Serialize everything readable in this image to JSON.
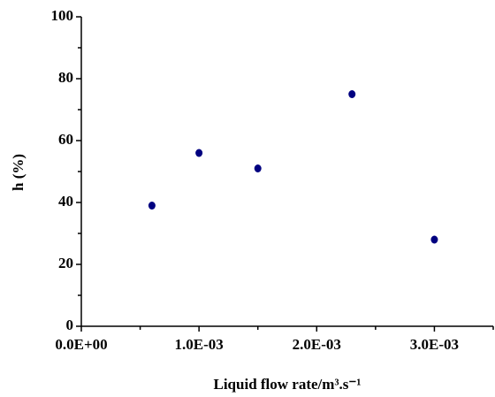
{
  "chart_data": {
    "type": "scatter",
    "xlabel": "Liquid flow rate/m³.s⁻¹",
    "ylabel": "h (%)",
    "x": [
      0.0006,
      0.001,
      0.0015,
      0.0023,
      0.003
    ],
    "values": [
      39,
      56,
      51,
      75,
      28
    ],
    "color": "#000080",
    "xlim": [
      0,
      0.0035
    ],
    "ylim": [
      0,
      100
    ],
    "xticks": [
      {
        "value": 0,
        "label": "0.0E+00"
      },
      {
        "value": 0.001,
        "label": "1.0E-03"
      },
      {
        "value": 0.002,
        "label": "2.0E-03"
      },
      {
        "value": 0.003,
        "label": "3.0E-03"
      }
    ],
    "xminorticks": [
      0.0005,
      0.0015,
      0.0025,
      0.0035
    ],
    "yticks": [
      0,
      20,
      40,
      60,
      80,
      100
    ],
    "yminorticks": [
      10,
      30,
      50,
      70,
      90
    ]
  }
}
